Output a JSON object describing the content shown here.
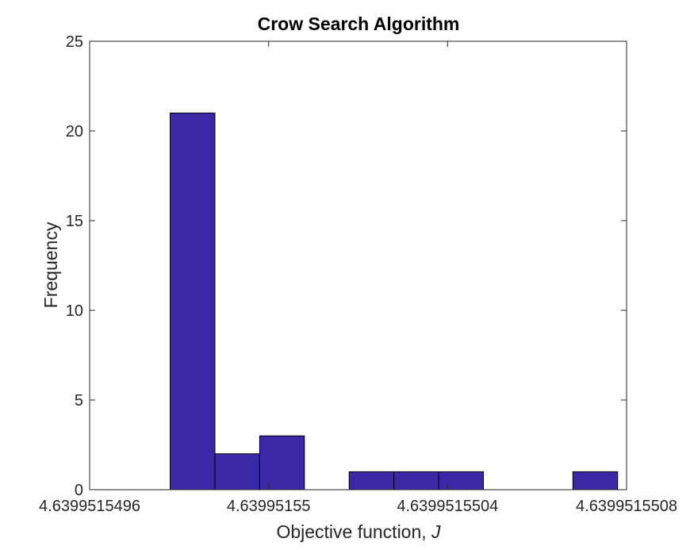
{
  "chart_data": {
    "type": "bar",
    "title": "Crow Search Algorithm",
    "xlabel": {
      "text": "Objective function, ",
      "italic": "J"
    },
    "ylabel": "Frequency",
    "xticks": [
      {
        "value": 4.6399515496,
        "label": "4.6399515496"
      },
      {
        "value": 4.63995155,
        "label": "4.63995155"
      },
      {
        "value": 4.6399515504,
        "label": "4.6399515504"
      },
      {
        "value": 4.6399515508,
        "label": "4.6399515508"
      }
    ],
    "yticks": [
      0,
      5,
      10,
      15,
      20,
      25
    ],
    "xlim": [
      4.6399515496,
      4.6399515508
    ],
    "ylim": [
      0,
      25
    ],
    "bin_edges": [
      4.63995154978,
      4.63995154988,
      4.63995154998,
      4.63995155008,
      4.63995155018,
      4.63995155028,
      4.63995155038,
      4.63995155048,
      4.63995155058,
      4.63995155068,
      4.63995155078
    ],
    "values": [
      21,
      2,
      3,
      0,
      1,
      1,
      1,
      0,
      0,
      1
    ],
    "bar_color": "#3b28a6",
    "edge_color": "#000000",
    "grid": false
  }
}
